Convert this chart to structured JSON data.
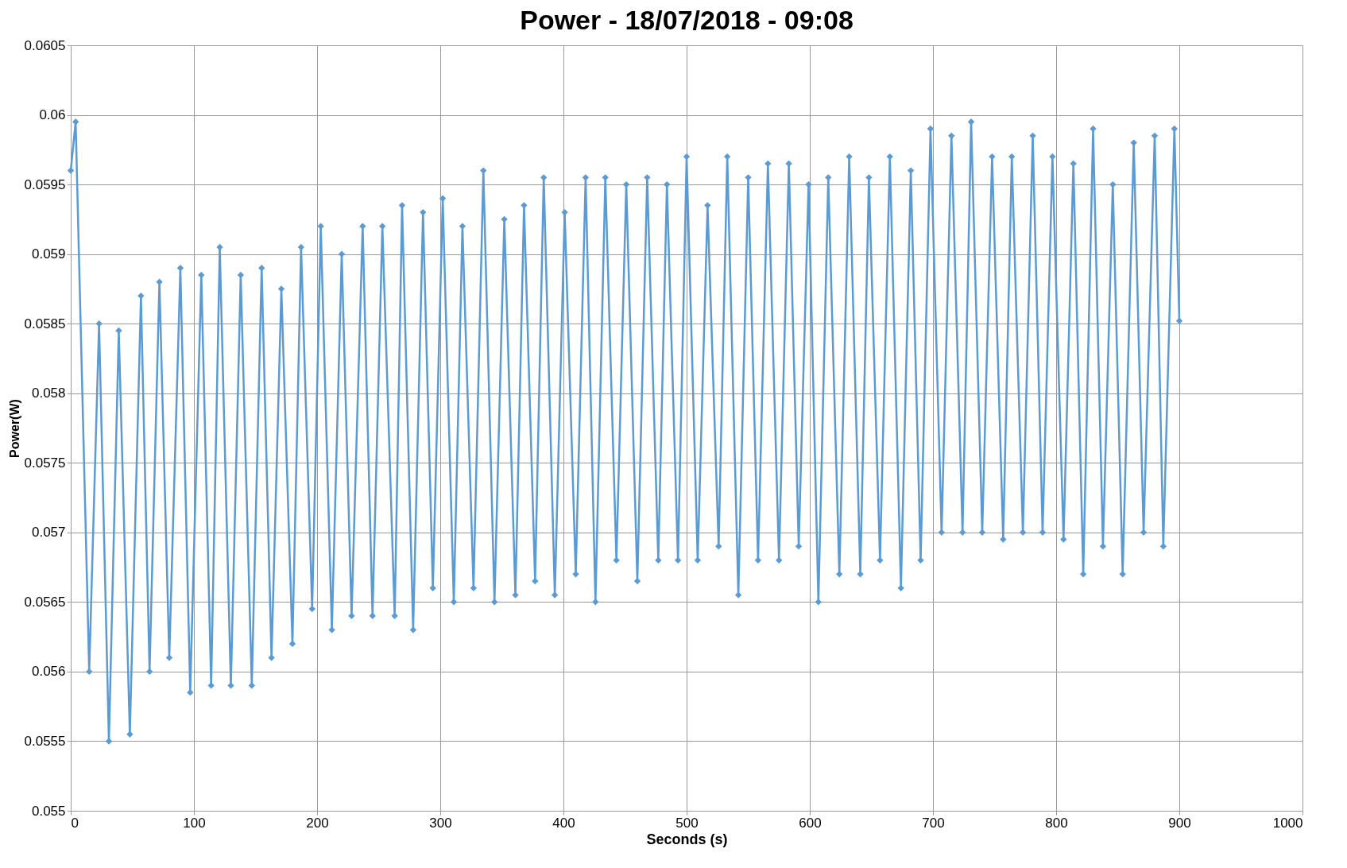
{
  "chart_data": {
    "type": "line",
    "title": "Power - 18/07/2018 - 09:08",
    "xlabel": "Seconds (s)",
    "ylabel": "Power(W)",
    "x": [
      0,
      4,
      15,
      23,
      31,
      39,
      48,
      57,
      64,
      72,
      80,
      89,
      97,
      106,
      114,
      121,
      130,
      138,
      147,
      155,
      163,
      171,
      180,
      187,
      196,
      203,
      212,
      220,
      228,
      237,
      245,
      253,
      263,
      269,
      278,
      286,
      294,
      302,
      311,
      318,
      327,
      335,
      344,
      352,
      361,
      368,
      377,
      384,
      393,
      401,
      410,
      418,
      426,
      434,
      443,
      451,
      460,
      468,
      477,
      484,
      493,
      500,
      509,
      517,
      526,
      533,
      542,
      550,
      558,
      566,
      575,
      583,
      591,
      599,
      607,
      615,
      624,
      632,
      641,
      648,
      657,
      665,
      674,
      682,
      690,
      698,
      707,
      715,
      724,
      731,
      740,
      748,
      757,
      764,
      773,
      781,
      789,
      797,
      806,
      814,
      822,
      830,
      838,
      846,
      854,
      863,
      871,
      880,
      887,
      896,
      900
    ],
    "series": [
      {
        "color": "#5b9bd5",
        "values": [
          0.0596,
          0.05995,
          0.056,
          0.0585,
          0.0555,
          0.05845,
          0.05555,
          0.0587,
          0.056,
          0.0588,
          0.0561,
          0.0589,
          0.05585,
          0.05885,
          0.0559,
          0.05905,
          0.0559,
          0.05885,
          0.0559,
          0.0589,
          0.0561,
          0.05875,
          0.0562,
          0.05905,
          0.05645,
          0.0592,
          0.0563,
          0.059,
          0.0564,
          0.0592,
          0.0564,
          0.0592,
          0.0564,
          0.05935,
          0.0563,
          0.0593,
          0.0566,
          0.0594,
          0.0565,
          0.0592,
          0.0566,
          0.0596,
          0.0565,
          0.05925,
          0.05655,
          0.05935,
          0.05665,
          0.05955,
          0.05655,
          0.0593,
          0.0567,
          0.05955,
          0.0565,
          0.05955,
          0.0568,
          0.0595,
          0.05665,
          0.05955,
          0.0568,
          0.0595,
          0.0568,
          0.0597,
          0.0568,
          0.05935,
          0.0569,
          0.0597,
          0.05655,
          0.05955,
          0.0568,
          0.05965,
          0.0568,
          0.05965,
          0.0569,
          0.0595,
          0.0565,
          0.05955,
          0.0567,
          0.0597,
          0.0567,
          0.05955,
          0.0568,
          0.0597,
          0.0566,
          0.0596,
          0.0568,
          0.0599,
          0.057,
          0.05985,
          0.057,
          0.05995,
          0.057,
          0.0597,
          0.05695,
          0.0597,
          0.057,
          0.05985,
          0.057,
          0.0597,
          0.05695,
          0.05965,
          0.0567,
          0.0599,
          0.0569,
          0.0595,
          0.0567,
          0.0598,
          0.057,
          0.05985,
          0.0569,
          0.0599,
          0.05852
        ]
      }
    ],
    "xlim": [
      0,
      1000
    ],
    "xticks": [
      0,
      100,
      200,
      300,
      400,
      500,
      600,
      700,
      800,
      900,
      1000
    ],
    "ylim": [
      0.055,
      0.0605
    ],
    "yticks": [
      0.055,
      0.0555,
      0.056,
      0.0565,
      0.057,
      0.0575,
      0.058,
      0.0585,
      0.059,
      0.0595,
      0.06,
      0.0605
    ],
    "grid": true,
    "marker": "diamond",
    "line_style": "solid"
  }
}
